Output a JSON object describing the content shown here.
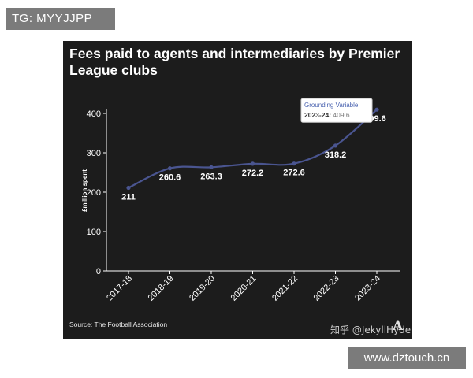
{
  "watermark_tag": "TG: MYYJJPP",
  "site_label": "www.dztouch.cn",
  "credit": "知乎 @JekyllHyde",
  "brand_glyph": "A",
  "colors": {
    "background": "#1c1c1c",
    "line": "#4a5590",
    "text": "#ffffff",
    "tooltip_title": "#4a63b0"
  },
  "tooltip": {
    "series": "Grounding Variable",
    "label": "2023-24:",
    "value": "409.6"
  },
  "chart_data": {
    "type": "line",
    "title": "Fees paid to agents and intermediaries by Premier League clubs",
    "xlabel": "",
    "ylabel": "£million spent",
    "categories": [
      "2017-18",
      "2018-19",
      "2019-20",
      "2020-21",
      "2021-22",
      "2022-23",
      "2023-24"
    ],
    "series": [
      {
        "name": "Grounding Variable",
        "values": [
          211,
          260.6,
          263.3,
          272.2,
          272.6,
          318.2,
          409.6
        ]
      }
    ],
    "data_labels": [
      "211",
      "260.6",
      "263.3",
      "272.2",
      "272.6",
      "318.2",
      "409.6"
    ],
    "yticks": [
      0,
      100,
      200,
      300,
      400
    ],
    "ylim": [
      0,
      400
    ],
    "grid": false,
    "legend": "none",
    "source": "Source: The Football Association"
  }
}
